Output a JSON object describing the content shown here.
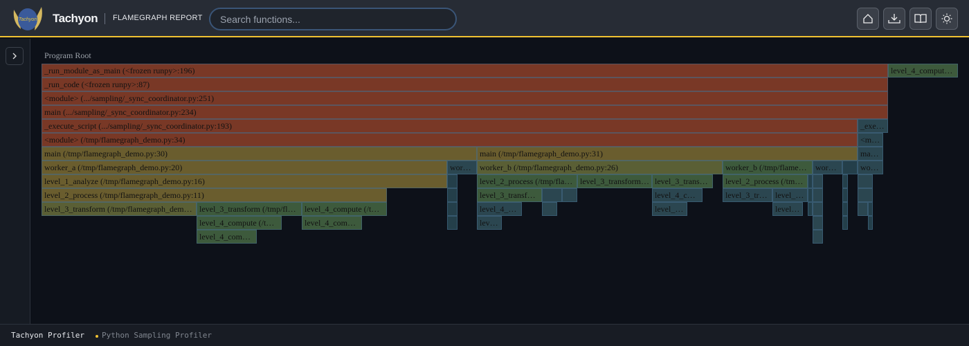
{
  "header": {
    "brand": "Tachyon",
    "logo_text": "Tachyon",
    "subtitle": "FLAMEGRAPH REPORT",
    "search_placeholder": "Search functions...",
    "accent": "#f1c232",
    "buttons": [
      {
        "icon": "home-icon"
      },
      {
        "icon": "download-icon"
      },
      {
        "icon": "book-icon"
      },
      {
        "icon": "sun-icon"
      }
    ]
  },
  "sidebar": {
    "toggle_icon": "chevron-right-icon"
  },
  "flamegraph": {
    "root_label": "Program Root",
    "colors": {
      "red": "#793826",
      "olive": "#6a5d2e",
      "olivegreen": "#5a5f35",
      "green": "#3d5a3c",
      "teal": "#2b4650",
      "dteal": "#243f4a"
    },
    "frames": [
      {
        "label": "_run_module_as_main (<frozen runpy>:196)",
        "tone": "red"
      },
      {
        "label": "level_4_comput…",
        "tone": "green"
      },
      {
        "label": "_run_code (<frozen runpy>:87)",
        "tone": "red"
      },
      {
        "label": "<module> (.../sampling/_sync_coordinator.py:251)",
        "tone": "red"
      },
      {
        "label": "main (.../sampling/_sync_coordinator.py:234)",
        "tone": "red"
      },
      {
        "label": "_execute_script (.../sampling/_sync_coordinator.py:193)",
        "tone": "red"
      },
      {
        "label": "_exe…",
        "tone": "teal"
      },
      {
        "label": "<module> (/tmp/flamegraph_demo.py:34)",
        "tone": "red"
      },
      {
        "label": "<m…",
        "tone": "teal"
      },
      {
        "label": "main (/tmp/flamegraph_demo.py:30)",
        "tone": "olive"
      },
      {
        "label": "main (/tmp/flamegraph_demo.py:31)",
        "tone": "olive"
      },
      {
        "label": "ma…",
        "tone": "teal"
      },
      {
        "label": "worker_a (/tmp/flamegraph_demo.py:20)",
        "tone": "olive"
      },
      {
        "label": "wor…",
        "tone": "teal"
      },
      {
        "label": "worker_b (/tmp/flamegraph_demo.py:26)",
        "tone": "olivegreen"
      },
      {
        "label": "worker_b (/tmp/flame…",
        "tone": "green"
      },
      {
        "label": "wor…",
        "tone": "teal"
      },
      {
        "label": "",
        "tone": "dteal"
      },
      {
        "label": "wo…",
        "tone": "teal"
      },
      {
        "label": "level_1_analyze (/tmp/flamegraph_demo.py:16)",
        "tone": "olive"
      },
      {
        "label": "",
        "tone": "dteal"
      },
      {
        "label": "level_2_process (/tmp/fla…",
        "tone": "green"
      },
      {
        "label": "level_3_transform…",
        "tone": "green"
      },
      {
        "label": "level_3_trans…",
        "tone": "green"
      },
      {
        "label": "level_2_process (/tm…",
        "tone": "green"
      },
      {
        "label": "",
        "tone": "dteal"
      },
      {
        "label": "",
        "tone": "teal"
      },
      {
        "label": "",
        "tone": "dteal"
      },
      {
        "label": "",
        "tone": "teal"
      },
      {
        "label": "level_2_process (/tmp/flamegraph_demo.py:11)",
        "tone": "olive"
      },
      {
        "label": "",
        "tone": "dteal"
      },
      {
        "label": "level_3_transf…",
        "tone": "green"
      },
      {
        "label": "",
        "tone": "teal"
      },
      {
        "label": "",
        "tone": "teal"
      },
      {
        "label": "level_4_c…",
        "tone": "teal"
      },
      {
        "label": "level_3_tr…",
        "tone": "teal"
      },
      {
        "label": "level_…",
        "tone": "teal"
      },
      {
        "label": "",
        "tone": "dteal"
      },
      {
        "label": "",
        "tone": "teal"
      },
      {
        "label": "",
        "tone": "dteal"
      },
      {
        "label": "",
        "tone": "teal"
      },
      {
        "label": "level_3_transform (/tmp/flamegraph_dem…",
        "tone": "olivegreen"
      },
      {
        "label": "level_3_transform (/tmp/fl…",
        "tone": "green"
      },
      {
        "label": "level_4_compute (/t…",
        "tone": "green"
      },
      {
        "label": "",
        "tone": "dteal"
      },
      {
        "label": "level_4_…",
        "tone": "teal"
      },
      {
        "label": "",
        "tone": "teal"
      },
      {
        "label": "level_…",
        "tone": "teal"
      },
      {
        "label": "level…",
        "tone": "teal"
      },
      {
        "label": "",
        "tone": "dteal"
      },
      {
        "label": "",
        "tone": "teal"
      },
      {
        "label": "",
        "tone": "dteal"
      },
      {
        "label": "",
        "tone": "teal"
      },
      {
        "label": "",
        "tone": "dteal"
      },
      {
        "label": "level_4_compute (/t…",
        "tone": "green"
      },
      {
        "label": "level_4_com…",
        "tone": "green"
      },
      {
        "label": "",
        "tone": "dteal"
      },
      {
        "label": "lev…",
        "tone": "teal"
      },
      {
        "label": "",
        "tone": "teal"
      },
      {
        "label": "",
        "tone": "dteal"
      },
      {
        "label": "",
        "tone": "dteal"
      },
      {
        "label": "level_4_com…",
        "tone": "green"
      },
      {
        "label": "",
        "tone": "teal"
      }
    ]
  },
  "footer": {
    "app": "Tachyon Profiler",
    "tagline": "Python Sampling Profiler"
  }
}
